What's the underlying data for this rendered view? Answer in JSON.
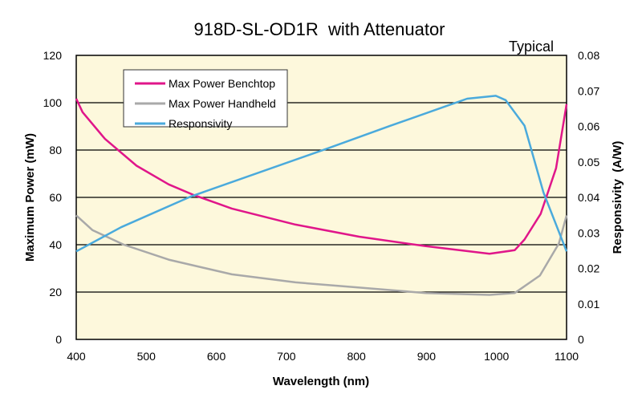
{
  "chart_data": {
    "type": "line",
    "title": "918D-SL-OD1R  with Attenuator",
    "annotation": "Typical",
    "xlabel": "Wavelength (nm)",
    "ylabel": "Maximum Power (mW)",
    "y2label": "Responsivity  (A/W)",
    "xlim": [
      400,
      1100
    ],
    "ylim": [
      0,
      120
    ],
    "y2lim": [
      0,
      0.08
    ],
    "xticks": [
      400,
      500,
      600,
      700,
      800,
      900,
      1000,
      1100
    ],
    "yticks": [
      0,
      20,
      40,
      60,
      80,
      100,
      120
    ],
    "y2ticks": [
      "0",
      "0.01",
      "0.02",
      "0.03",
      "0.04",
      "0.05",
      "0.06",
      "0.07",
      "0.08"
    ],
    "grid": "horizontal",
    "legend_position": "top-left",
    "background": "#fdf8dc",
    "series": [
      {
        "name": "Max Power Benchtop",
        "axis": "left",
        "color": "#e0168a",
        "x": [
          400,
          409,
          441,
          486,
          532,
          568,
          622,
          713,
          804,
          899,
          990,
          1026,
          1040,
          1063,
          1085,
          1100
        ],
        "y": [
          101.7,
          96,
          84.7,
          73.4,
          65.5,
          61,
          55.3,
          48.5,
          43.4,
          39.4,
          36.2,
          37.7,
          42.2,
          53,
          72.3,
          99.4
        ]
      },
      {
        "name": "Max Power Handheld",
        "axis": "left",
        "color": "#a9a9a9",
        "x": [
          400,
          423,
          468,
          532,
          622,
          713,
          804,
          899,
          990,
          1026,
          1062,
          1089,
          1100
        ],
        "y": [
          52.4,
          46.2,
          40,
          33.7,
          27.5,
          24.1,
          21.9,
          19.6,
          18.8,
          19.6,
          27,
          40.5,
          52.4
        ]
      },
      {
        "name": "Responsivity",
        "axis": "right",
        "color": "#4aaadc",
        "x": [
          400,
          464,
          563,
          759,
          849,
          958,
          999,
          1013,
          1040,
          1067,
          1100
        ],
        "y": [
          0.0248,
          0.0316,
          0.0402,
          0.0538,
          0.0602,
          0.0678,
          0.0686,
          0.0674,
          0.0602,
          0.0414,
          0.0248
        ]
      }
    ]
  }
}
